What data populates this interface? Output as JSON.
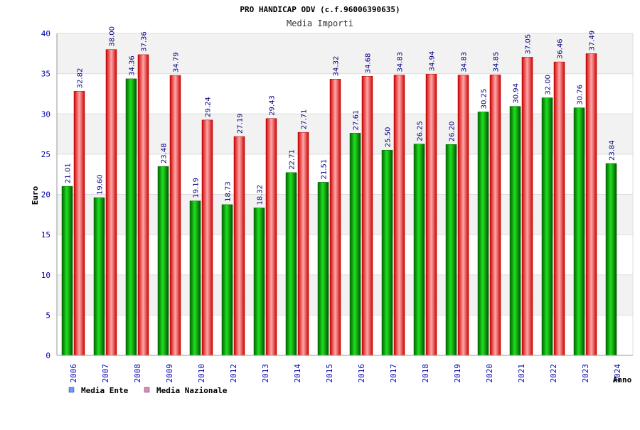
{
  "chart_data": {
    "type": "bar",
    "title": "PRO HANDICAP ODV (c.f.96006390635)",
    "subtitle": "Media Importi",
    "ylabel": "Euro",
    "xlabel": "Anno",
    "ylim": [
      0,
      40
    ],
    "yticks": [
      "0",
      "5",
      "10",
      "15",
      "20",
      "25",
      "30",
      "35",
      "40"
    ],
    "grid": true,
    "legend_position": "bottom-left",
    "categories": [
      "2006",
      "2007",
      "2008",
      "2009",
      "2010",
      "2012",
      "2013",
      "2014",
      "2015",
      "2016",
      "2017",
      "2018",
      "2019",
      "2020",
      "2021",
      "2022",
      "2023",
      "2024"
    ],
    "series": [
      {
        "name": "Media Ente",
        "color": "#00aa00",
        "legend_color": "#6699ff",
        "values": [
          21.01,
          19.6,
          34.36,
          23.48,
          19.19,
          18.73,
          18.32,
          22.71,
          21.51,
          27.61,
          25.5,
          26.25,
          26.2,
          30.25,
          30.94,
          32.0,
          30.76,
          23.84
        ],
        "labels": [
          "21.01",
          "19.60",
          "34.36",
          "23.48",
          "19.19",
          "18.73",
          "18.32",
          "22.71",
          "21.51",
          "27.61",
          "25.50",
          "26.25",
          "26.20",
          "30.25",
          "30.94",
          "32.00",
          "30.76",
          "23.84"
        ]
      },
      {
        "name": "Media Nazionale",
        "color": "#ee1111",
        "legend_color": "#dd88bb",
        "values": [
          32.82,
          38.0,
          37.36,
          34.79,
          29.24,
          27.19,
          29.43,
          27.71,
          34.32,
          34.68,
          34.83,
          34.94,
          34.83,
          34.85,
          37.05,
          36.46,
          37.49,
          null
        ],
        "labels": [
          "32.82",
          "38.00",
          "37.36",
          "34.79",
          "29.24",
          "27.19",
          "29.43",
          "27.71",
          "34.32",
          "34.68",
          "34.83",
          "34.94",
          "34.83",
          "34.85",
          "37.05",
          "36.46",
          "37.49",
          ""
        ]
      }
    ]
  }
}
